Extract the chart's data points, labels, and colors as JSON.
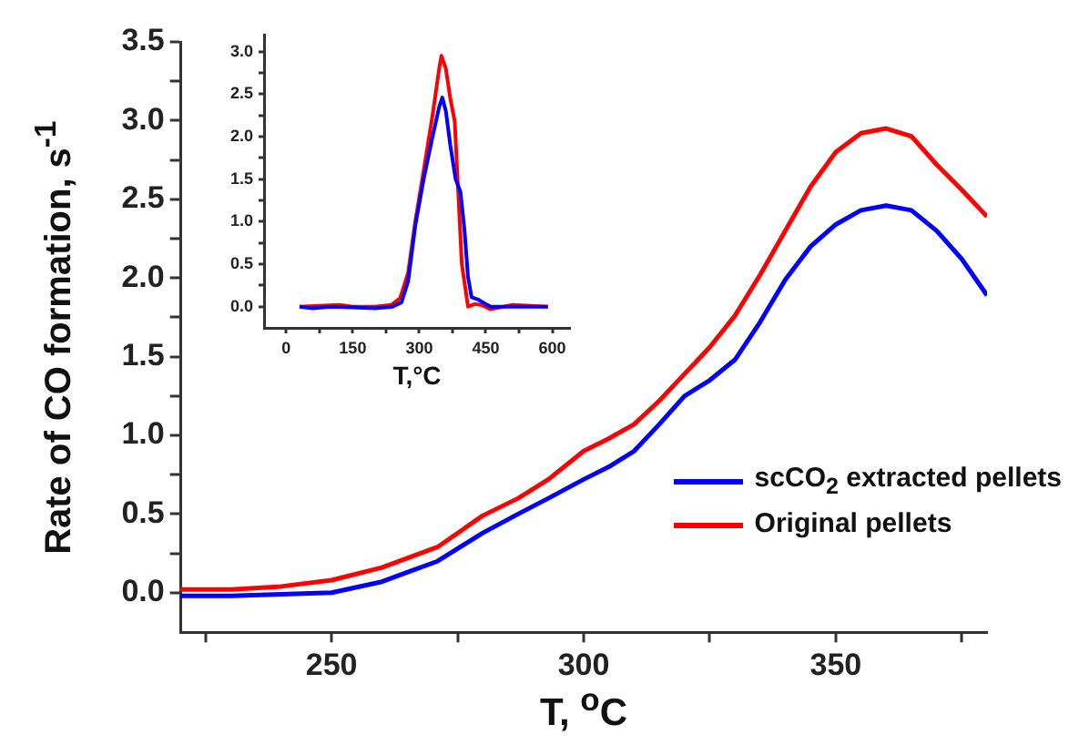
{
  "chart_data": [
    {
      "type": "line",
      "xlabel": "T, $^{o}$C",
      "ylabel": "Rate of CO formation, s$^{-1}$",
      "legend": "bottom right",
      "marker": "none",
      "line_style": "solid",
      "grid": false,
      "x": [
        220,
        230,
        240,
        250,
        260,
        265,
        271,
        280,
        287,
        293,
        300,
        305,
        310,
        315,
        320,
        325,
        330,
        335,
        340,
        345,
        350,
        355,
        360,
        365,
        370,
        375,
        380
      ],
      "series": [
        {
          "name": "scCO$_{2}$ extracted pellets",
          "color": "#0000ff",
          "values": [
            -0.02,
            -0.02,
            -0.01,
            0.0,
            0.07,
            0.13,
            0.2,
            0.38,
            0.5,
            0.6,
            0.72,
            0.8,
            0.9,
            1.07,
            1.25,
            1.35,
            1.48,
            1.72,
            1.99,
            2.2,
            2.34,
            2.43,
            2.46,
            2.43,
            2.3,
            2.12,
            1.89
          ]
        },
        {
          "name": "Original pellets",
          "color": "#ff0000",
          "values": [
            0.02,
            0.02,
            0.04,
            0.08,
            0.16,
            0.22,
            0.29,
            0.49,
            0.6,
            0.72,
            0.9,
            0.98,
            1.07,
            1.22,
            1.39,
            1.56,
            1.76,
            2.02,
            2.3,
            2.58,
            2.8,
            2.92,
            2.95,
            2.9,
            2.72,
            2.56,
            2.39
          ]
        }
      ],
      "xlim": [
        220,
        380
      ],
      "ylim": [
        -0.25,
        3.5
      ],
      "xticks": [
        {
          "value": 225,
          "label": null
        },
        250,
        {
          "value": 275,
          "label": null
        },
        300,
        {
          "value": 325,
          "label": null
        },
        350,
        {
          "value": 375,
          "label": null
        }
      ],
      "yticks": [
        {
          "value": 0,
          "label": "0.0"
        },
        {
          "value": 0.25,
          "label": null
        },
        0.5,
        {
          "value": 0.75,
          "label": null
        },
        {
          "value": 1,
          "label": "1.0"
        },
        {
          "value": 1.25,
          "label": null
        },
        1.5,
        {
          "value": 1.75,
          "label": null
        },
        {
          "value": 2,
          "label": "2.0"
        },
        {
          "value": 2.25,
          "label": null
        },
        2.5,
        {
          "value": 2.75,
          "label": null
        },
        {
          "value": 3,
          "label": "3.0"
        },
        {
          "value": 3.25,
          "label": null
        },
        3.5
      ]
    },
    {
      "type": "line",
      "xlabel": "T,°C",
      "legend": false,
      "marker": "none",
      "line_style": "solid",
      "grid": false,
      "series": [
        {
          "color": "#0000ff",
          "x": [
            30,
            60,
            100,
            150,
            200,
            240,
            260,
            275,
            291,
            310,
            330,
            345,
            352,
            360,
            370,
            382,
            393,
            402,
            410,
            418,
            434,
            450,
            461,
            500,
            550,
            590
          ],
          "values": [
            0.0,
            -0.02,
            0.0,
            -0.01,
            -0.02,
            0.0,
            0.05,
            0.3,
            0.95,
            1.5,
            2.0,
            2.35,
            2.46,
            2.3,
            1.9,
            1.5,
            1.35,
            0.9,
            0.35,
            0.11,
            0.08,
            0.03,
            0.0,
            0.0,
            0.0,
            0.0
          ]
        },
        {
          "color": "#ff0000",
          "x": [
            30,
            120,
            150,
            200,
            237,
            257,
            275,
            291,
            310,
            330,
            345,
            350,
            360,
            370,
            380,
            396,
            410,
            425,
            440,
            460,
            490,
            510,
            550,
            590
          ],
          "values": [
            0.0,
            0.02,
            0.0,
            0.0,
            0.02,
            0.1,
            0.4,
            1.0,
            1.6,
            2.25,
            2.8,
            2.95,
            2.8,
            2.45,
            2.18,
            0.5,
            0.0,
            0.03,
            0.02,
            -0.03,
            0.0,
            0.02,
            0.01,
            0.0
          ]
        }
      ],
      "xlim": [
        -50,
        640
      ],
      "ylim": [
        -0.25,
        3.2
      ],
      "xticks": [
        0,
        {
          "value": 75,
          "label": null
        },
        150,
        {
          "value": 225,
          "label": null
        },
        300,
        {
          "value": 375,
          "label": null
        },
        450,
        {
          "value": 525,
          "label": null
        },
        600
      ],
      "yticks": [
        {
          "value": 0,
          "label": "0.0"
        },
        {
          "value": 0.25,
          "label": null
        },
        0.5,
        {
          "value": 0.75,
          "label": null
        },
        {
          "value": 1,
          "label": "1.0"
        },
        {
          "value": 1.25,
          "label": null
        },
        1.5,
        {
          "value": 1.75,
          "label": null
        },
        {
          "value": 2,
          "label": "2.0"
        },
        {
          "value": 2.25,
          "label": null
        },
        2.5,
        {
          "value": 2.75,
          "label": null
        },
        {
          "value": 3,
          "label": "3.0"
        }
      ]
    }
  ]
}
